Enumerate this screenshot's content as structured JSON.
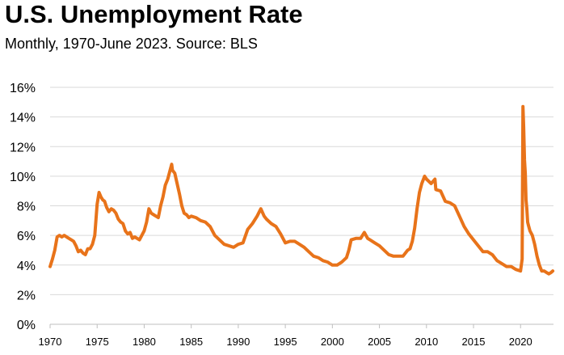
{
  "chart_data": {
    "type": "line",
    "title": "U.S. Unemployment Rate",
    "subtitle": "Monthly, 1970-June 2023. Source: BLS",
    "xlabel": "",
    "ylabel": "",
    "xlim": [
      1970,
      2023.5
    ],
    "ylim": [
      0,
      16
    ],
    "grid": true,
    "color": "#E8731A",
    "x_ticks": [
      1970,
      1975,
      1980,
      1985,
      1990,
      1995,
      2000,
      2005,
      2010,
      2015,
      2020
    ],
    "x_tick_labels": [
      "1970",
      "1975",
      "1980",
      "1985",
      "1990",
      "1995",
      "2000",
      "2005",
      "2010",
      "2015",
      "2020"
    ],
    "y_ticks": [
      0,
      2,
      4,
      6,
      8,
      10,
      12,
      14,
      16
    ],
    "y_tick_labels": [
      "0%",
      "2%",
      "4%",
      "6%",
      "8%",
      "10%",
      "12%",
      "14%",
      "16%"
    ],
    "series": [
      {
        "name": "Unemployment Rate",
        "x": [
          1970.0,
          1970.25,
          1970.5,
          1970.75,
          1971.0,
          1971.25,
          1971.5,
          1971.75,
          1972.0,
          1972.25,
          1972.5,
          1972.75,
          1973.0,
          1973.25,
          1973.5,
          1973.75,
          1974.0,
          1974.25,
          1974.5,
          1974.75,
          1975.0,
          1975.2,
          1975.4,
          1975.6,
          1975.8,
          1976.0,
          1976.25,
          1976.5,
          1976.75,
          1977.0,
          1977.25,
          1977.5,
          1977.75,
          1978.0,
          1978.25,
          1978.5,
          1978.75,
          1979.0,
          1979.25,
          1979.5,
          1979.75,
          1980.0,
          1980.25,
          1980.5,
          1980.75,
          1981.0,
          1981.25,
          1981.5,
          1981.75,
          1982.0,
          1982.25,
          1982.5,
          1982.75,
          1982.92,
          1983.0,
          1983.25,
          1983.5,
          1983.75,
          1984.0,
          1984.25,
          1984.5,
          1984.75,
          1985.0,
          1985.5,
          1986.0,
          1986.5,
          1987.0,
          1987.5,
          1988.0,
          1988.5,
          1989.0,
          1989.5,
          1990.0,
          1990.5,
          1991.0,
          1991.5,
          1992.0,
          1992.4,
          1992.75,
          1993.0,
          1993.5,
          1994.0,
          1994.5,
          1995.0,
          1995.5,
          1996.0,
          1996.5,
          1997.0,
          1997.5,
          1998.0,
          1998.5,
          1999.0,
          1999.5,
          2000.0,
          2000.5,
          2001.0,
          2001.5,
          2001.75,
          2002.0,
          2002.5,
          2003.0,
          2003.4,
          2003.75,
          2004.0,
          2004.5,
          2005.0,
          2005.5,
          2006.0,
          2006.5,
          2007.0,
          2007.5,
          2008.0,
          2008.25,
          2008.5,
          2008.75,
          2009.0,
          2009.25,
          2009.5,
          2009.8,
          2010.0,
          2010.5,
          2010.9,
          2011.0,
          2011.5,
          2012.0,
          2012.5,
          2013.0,
          2013.5,
          2014.0,
          2014.5,
          2015.0,
          2015.5,
          2016.0,
          2016.5,
          2017.0,
          2017.5,
          2018.0,
          2018.5,
          2019.0,
          2019.5,
          2020.0,
          2020.17,
          2020.25,
          2020.33,
          2020.42,
          2020.5,
          2020.58,
          2020.67,
          2020.75,
          2020.83,
          2021.0,
          2021.25,
          2021.5,
          2021.75,
          2022.0,
          2022.25,
          2022.5,
          2022.75,
          2023.0,
          2023.25,
          2023.42
        ],
        "values": [
          3.9,
          4.4,
          5.0,
          5.9,
          6.0,
          5.9,
          6.0,
          5.9,
          5.8,
          5.7,
          5.6,
          5.3,
          4.9,
          5.0,
          4.8,
          4.7,
          5.1,
          5.1,
          5.4,
          6.0,
          8.1,
          8.9,
          8.6,
          8.4,
          8.3,
          7.9,
          7.6,
          7.8,
          7.7,
          7.5,
          7.1,
          6.9,
          6.8,
          6.3,
          6.1,
          6.2,
          5.8,
          5.9,
          5.8,
          5.7,
          6.0,
          6.3,
          6.9,
          7.8,
          7.5,
          7.4,
          7.3,
          7.2,
          8.0,
          8.6,
          9.4,
          9.8,
          10.4,
          10.8,
          10.4,
          10.2,
          9.5,
          8.8,
          8.0,
          7.5,
          7.4,
          7.2,
          7.3,
          7.2,
          7.0,
          6.9,
          6.6,
          6.0,
          5.7,
          5.4,
          5.3,
          5.2,
          5.4,
          5.5,
          6.4,
          6.8,
          7.3,
          7.8,
          7.3,
          7.1,
          6.8,
          6.6,
          6.1,
          5.5,
          5.6,
          5.6,
          5.4,
          5.2,
          4.9,
          4.6,
          4.5,
          4.3,
          4.2,
          4.0,
          4.0,
          4.2,
          4.5,
          5.0,
          5.7,
          5.8,
          5.8,
          6.2,
          5.8,
          5.7,
          5.5,
          5.3,
          5.0,
          4.7,
          4.6,
          4.6,
          4.6,
          5.0,
          5.1,
          5.6,
          6.5,
          7.8,
          8.9,
          9.5,
          10.0,
          9.8,
          9.5,
          9.8,
          9.1,
          9.0,
          8.3,
          8.2,
          8.0,
          7.3,
          6.6,
          6.1,
          5.7,
          5.3,
          4.9,
          4.9,
          4.7,
          4.3,
          4.1,
          3.9,
          3.9,
          3.7,
          3.6,
          4.4,
          14.7,
          13.3,
          11.1,
          10.2,
          8.4,
          7.8,
          6.9,
          6.7,
          6.3,
          6.0,
          5.4,
          4.6,
          4.0,
          3.6,
          3.6,
          3.5,
          3.4,
          3.5,
          3.6
        ]
      }
    ]
  }
}
